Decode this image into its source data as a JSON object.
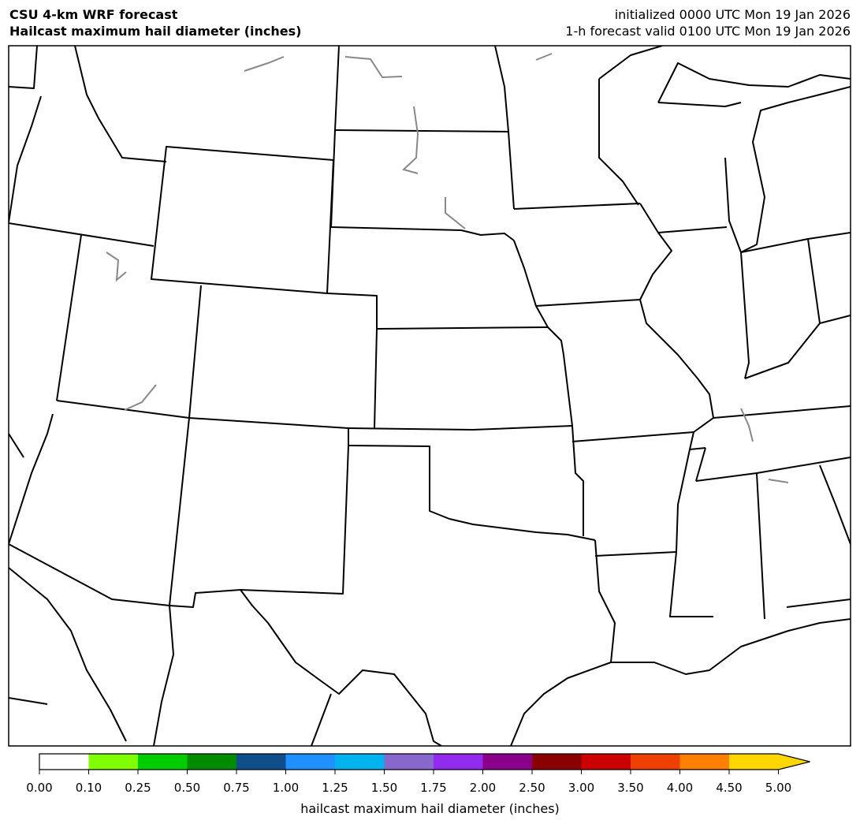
{
  "header": {
    "left_line1": "CSU 4-km WRF forecast",
    "left_line2": "Hailcast maximum hail diameter (inches)",
    "right_line1": "initialized 0000 UTC Mon 19 Jan 2026",
    "right_line2": "1-h forecast valid 0100 UTC Mon 19 Jan 2026"
  },
  "map": {
    "region": "Central United States",
    "field_values_shown": "none (all below 0.10)",
    "state_border_color": "#000000",
    "lake_border_color": "#888888"
  },
  "colorbar": {
    "label": "hailcast maximum hail diameter (inches)",
    "ticks": [
      "0.00",
      "0.10",
      "0.25",
      "0.50",
      "0.75",
      "1.00",
      "1.25",
      "1.50",
      "1.75",
      "2.00",
      "2.50",
      "3.00",
      "3.50",
      "4.00",
      "4.50",
      "5.00"
    ],
    "colors": [
      "#ffffff",
      "#7fff00",
      "#00cd00",
      "#008b00",
      "#104e8b",
      "#1e90ff",
      "#00b2ee",
      "#8968cd",
      "#912cee",
      "#8b008b",
      "#8b0000",
      "#cd0000",
      "#ee4000",
      "#ff7f00",
      "#ffd700"
    ],
    "extend": "max"
  }
}
